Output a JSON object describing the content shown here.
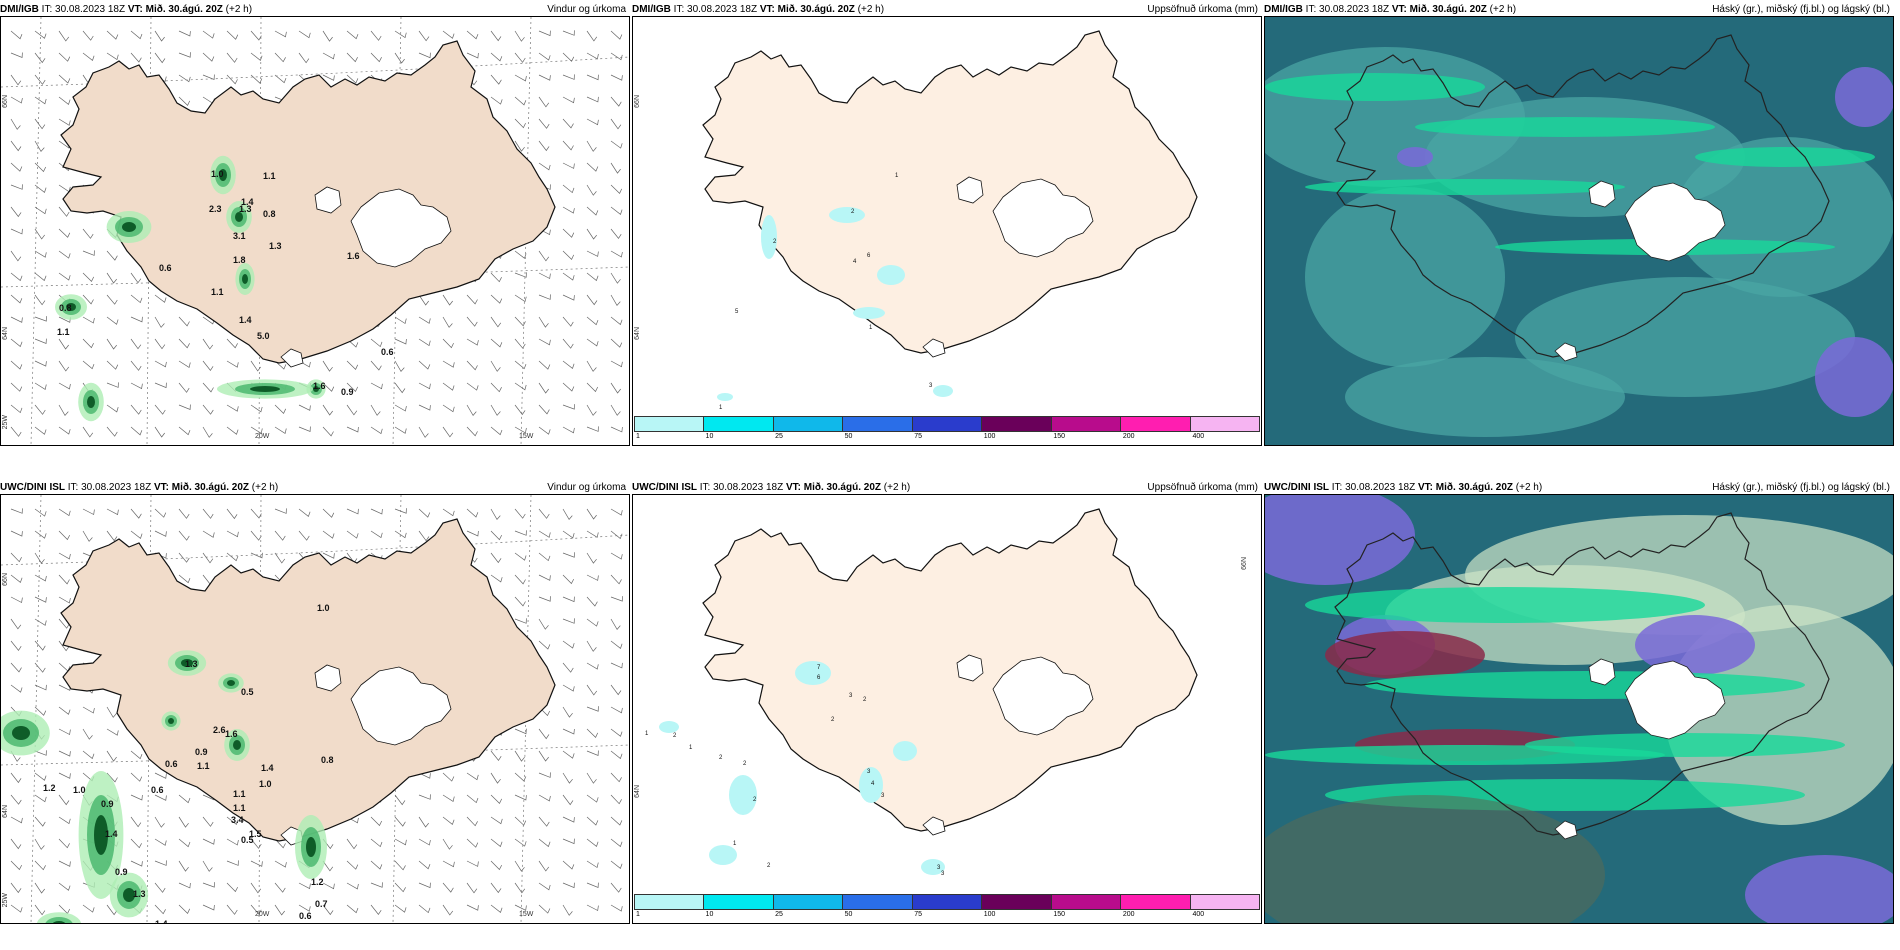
{
  "panels": [
    {
      "model": "DMI/IGB",
      "it": "IT: 30.08.2023 18Z",
      "vt_label": "VT: Mið. 30.ágú. 20Z",
      "lead": "(+2 h)",
      "title": "Vindur og úrkoma"
    },
    {
      "model": "DMI/IGB",
      "it": "IT: 30.08.2023 18Z",
      "vt_label": "VT: Mið. 30.ágú. 20Z",
      "lead": "(+2 h)",
      "title": "Uppsöfnuð úrkoma (mm)"
    },
    {
      "model": "DMI/IGB",
      "it": "IT: 30.08.2023 18Z",
      "vt_label": "VT: Mið. 30.ágú. 20Z",
      "lead": "(+2 h)",
      "title": "Háský (gr.), miðský (fj.bl.) og lágský (bl.)"
    },
    {
      "model": "UWC/DINI ISL",
      "it": "IT: 30.08.2023 18Z",
      "vt_label": "VT: Mið. 30.ágú. 20Z",
      "lead": "(+2 h)",
      "title": "Vindur og úrkoma"
    },
    {
      "model": "UWC/DINI ISL",
      "it": "IT: 30.08.2023 18Z",
      "vt_label": "VT: Mið. 30.ágú. 20Z",
      "lead": "(+2 h)",
      "title": "Uppsöfnuð úrkoma (mm)"
    },
    {
      "model": "UWC/DINI ISL",
      "it": "IT: 30.08.2023 18Z",
      "vt_label": "VT: Mið. 30.ágú. 20Z",
      "lead": "(+2 h)",
      "title": "Háský (gr.), miðský (fj.bl.) og lágský (bl.)"
    }
  ],
  "axis_labels": {
    "lat66": "66N",
    "lat64": "64N",
    "lat25w": "25W",
    "lon20w": "20W",
    "lon15w": "15W"
  },
  "scale": {
    "ticks": [
      "1",
      "10",
      "25",
      "50",
      "75",
      "100",
      "150",
      "200",
      "400"
    ],
    "colors": [
      "#b8f6f6",
      "#00e8f0",
      "#10b8ea",
      "#2a6ee8",
      "#2a3ccc",
      "#6a005a",
      "#b80c8c",
      "#ff1eb0",
      "#f6b4f2"
    ]
  },
  "precip_values_top": [
    "1.0",
    "1.1",
    "1.4",
    "2.3",
    "1.3",
    "0.8",
    "3.1",
    "1.3",
    "1.8",
    "1.6",
    "0.6",
    "1.1",
    "0.8",
    "1.1",
    "1.4",
    "5.0",
    "0.6",
    "1.6",
    "0.9"
  ],
  "precip_values_bottom": [
    "1.0",
    "0.5",
    "1.3",
    "2.6",
    "1.6",
    "0.8",
    "0.9",
    "1.1",
    "0.6",
    "0.6",
    "1.4",
    "1.0",
    "1.1",
    "1.2",
    "1.0",
    "0.9",
    "1.1",
    "3.4",
    "1.5",
    "0.5",
    "1.4",
    "0.9",
    "1.3",
    "1.4",
    "1.2",
    "0.7",
    "0.6",
    "0.8"
  ],
  "accum_values_top": [
    "1",
    "2",
    "5",
    "2",
    "6",
    "1",
    "4",
    "1",
    "3"
  ],
  "accum_values_bottom": [
    "7",
    "6",
    "3",
    "2",
    "2",
    "1",
    "2",
    "1",
    "2",
    "2",
    "2",
    "1",
    "3",
    "4",
    "3",
    "2",
    "3",
    "3"
  ],
  "colors": {
    "land": "#fdefe2",
    "land_precip": "#f1dcca",
    "green_dark": "#0e5c28",
    "green_light": "#aeeeb4",
    "teal_dark": "#246a7a",
    "teal_mid": "#4aa6a4",
    "green_cloud": "#18d89a",
    "purple": "#7a6ad8",
    "maroon": "#8a2a4a"
  }
}
